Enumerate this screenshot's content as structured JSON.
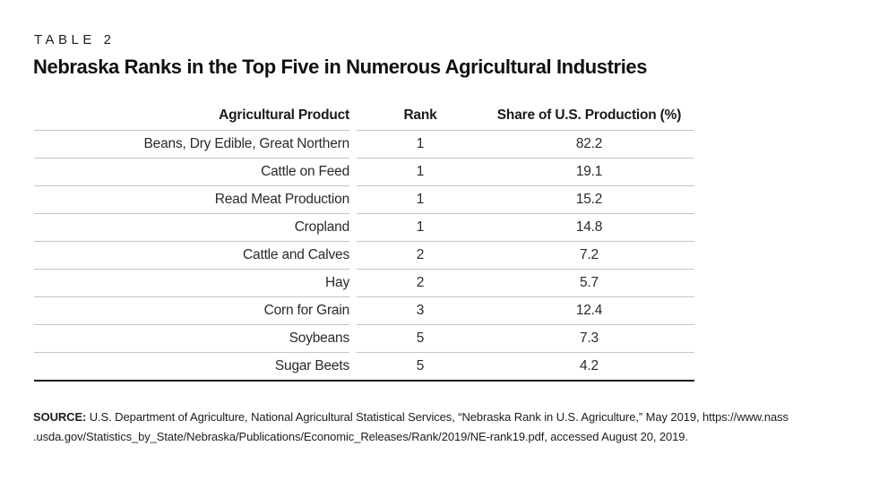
{
  "header": {
    "table_label": "TABLE 2",
    "title": "Nebraska Ranks in the Top Five in Numerous Agricultural Industries"
  },
  "table": {
    "columns": [
      "Agricultural Product",
      "Rank",
      "Share of U.S. Production (%)"
    ],
    "rows": [
      {
        "product": "Beans, Dry Edible, Great Northern",
        "rank": "1",
        "share": "82.2"
      },
      {
        "product": "Cattle on Feed",
        "rank": "1",
        "share": "19.1"
      },
      {
        "product": "Read Meat Production",
        "rank": "1",
        "share": "15.2"
      },
      {
        "product": "Cropland",
        "rank": "1",
        "share": "14.8"
      },
      {
        "product": "Cattle and Calves",
        "rank": "2",
        "share": "7.2"
      },
      {
        "product": "Hay",
        "rank": "2",
        "share": "5.7"
      },
      {
        "product": "Corn for Grain",
        "rank": "3",
        "share": "12.4"
      },
      {
        "product": "Soybeans",
        "rank": "5",
        "share": "7.3"
      },
      {
        "product": "Sugar Beets",
        "rank": "5",
        "share": "4.2"
      }
    ]
  },
  "source": {
    "label": "SOURCE:",
    "line1": " U.S. Department of Agriculture, National Agricultural Statistical Services, “Nebraska Rank in U.S. Agriculture,” May 2019, https://www.nass",
    "line2": ".usda.gov/Statistics_by_State/Nebraska/Publications/Economic_Releases/Rank/2019/NE-rank19.pdf, accessed August 20, 2019."
  },
  "colors": {
    "text": "#1d1d1d",
    "row_separator": "#c5c5c5",
    "bottom_rule": "#1a1a1a",
    "background": "#ffffff"
  },
  "chart_data": {
    "type": "table",
    "title": "Nebraska Ranks in the Top Five in Numerous Agricultural Industries",
    "subtitle": "TABLE 2",
    "columns": [
      "Agricultural Product",
      "Rank",
      "Share of U.S. Production (%)"
    ],
    "rows": [
      [
        "Beans, Dry Edible, Great Northern",
        1,
        82.2
      ],
      [
        "Cattle on Feed",
        1,
        19.1
      ],
      [
        "Read Meat Production",
        1,
        15.2
      ],
      [
        "Cropland",
        1,
        14.8
      ],
      [
        "Cattle and Calves",
        2,
        7.2
      ],
      [
        "Hay",
        2,
        5.7
      ],
      [
        "Corn for Grain",
        3,
        12.4
      ],
      [
        "Soybeans",
        5,
        7.3
      ],
      [
        "Sugar Beets",
        5,
        4.2
      ]
    ]
  }
}
